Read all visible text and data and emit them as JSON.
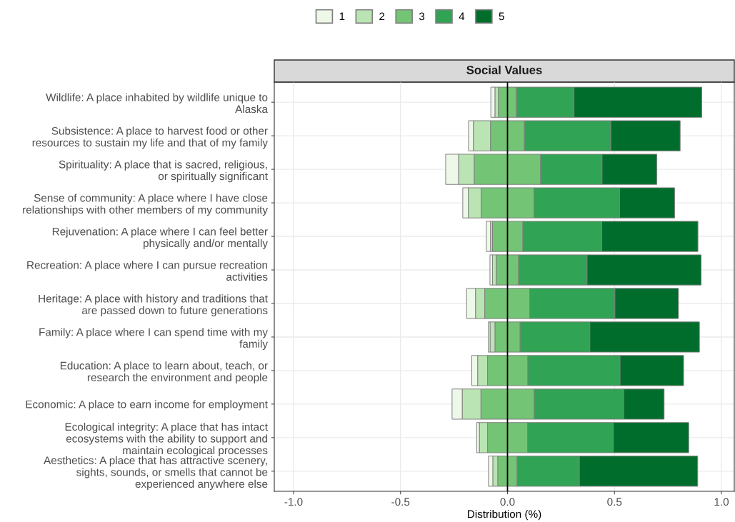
{
  "chart_data": {
    "type": "bar",
    "orientation": "horizontal",
    "title": "Social Values",
    "xlabel": "Distribution (%)",
    "categories": [
      "Wildlife: A place inhabited by wildlife unique to\nAlaska",
      "Subsistence: A place to harvest food or other\nresources to sustain my life and that of my family",
      "Spirituality: A place that is sacred, religious,\nor spiritually significant",
      "Sense of community: A place where I have close\nrelationships with other members of my community",
      "Rejuvenation: A place where I can feel better\nphysically and/or mentally",
      "Recreation: A place where I can pursue recreation\nactivities",
      "Heritage: A place with history and traditions that\nare passed down to future generations",
      "Family: A place where I can spend time with my\nfamily",
      "Education: A place to learn about, teach, or\nresearch the environment and people",
      "Economic: A place to earn income for employment",
      "Ecological integrity: A place that has intact\necosystems with the ability to support and\nmaintain ecological processes",
      "Aesthetics: A place that has attractive scenery,\nsights, sounds, or smells that cannot be\nexperienced anywhere else"
    ],
    "series": [
      {
        "name": "1",
        "color": "#edf8e9",
        "base": [
          -0.078,
          -0.182,
          -0.289,
          -0.209,
          -0.099,
          -0.082,
          -0.191,
          -0.09,
          -0.167,
          -0.259,
          -0.144,
          -0.089
        ],
        "values": [
          0.02,
          0.023,
          0.061,
          0.026,
          0.02,
          0.012,
          0.042,
          0.009,
          0.028,
          0.048,
          0.013,
          0.021
        ]
      },
      {
        "name": "2",
        "color": "#bae4b3",
        "base": [
          -0.058,
          -0.159,
          -0.228,
          -0.183,
          -0.079,
          -0.07,
          -0.149,
          -0.081,
          -0.139,
          -0.211,
          -0.131,
          -0.068
        ],
        "values": [
          0.016,
          0.08,
          0.073,
          0.06,
          0.009,
          0.018,
          0.043,
          0.023,
          0.046,
          0.087,
          0.038,
          0.023
        ]
      },
      {
        "name": "3",
        "color": "#74c476",
        "base": [
          -0.042,
          -0.079,
          -0.155,
          -0.123,
          -0.07,
          -0.052,
          -0.106,
          -0.058,
          -0.093,
          -0.124,
          -0.093,
          -0.045
        ],
        "values": [
          0.084,
          0.158,
          0.31,
          0.247,
          0.142,
          0.104,
          0.21,
          0.117,
          0.188,
          0.249,
          0.187,
          0.09
        ]
      },
      {
        "name": "4",
        "color": "#31a354",
        "base": [
          0.042,
          0.079,
          0.155,
          0.124,
          0.072,
          0.052,
          0.104,
          0.059,
          0.095,
          0.125,
          0.094,
          0.045
        ],
        "values": [
          0.269,
          0.404,
          0.287,
          0.4,
          0.369,
          0.32,
          0.398,
          0.326,
          0.431,
          0.418,
          0.401,
          0.291
        ]
      },
      {
        "name": "5",
        "color": "#006d2c",
        "base": [
          0.311,
          0.483,
          0.442,
          0.524,
          0.441,
          0.372,
          0.502,
          0.385,
          0.526,
          0.543,
          0.495,
          0.336
        ],
        "values": [
          0.597,
          0.324,
          0.256,
          0.257,
          0.449,
          0.533,
          0.297,
          0.512,
          0.297,
          0.189,
          0.352,
          0.553
        ]
      }
    ],
    "xlim": [
      -1.09,
      1.06
    ],
    "xticks": [
      {
        "value": -1,
        "label": "-1.0"
      },
      {
        "value": -0.5,
        "label": "-0.5"
      },
      {
        "value": 0,
        "label": "0.0"
      },
      {
        "value": 0.5,
        "label": "0.5"
      },
      {
        "value": 1,
        "label": "1.0"
      }
    ],
    "ref_lines": [
      {
        "axis": "x",
        "value": 0,
        "color": "#000000"
      }
    ],
    "grid": true,
    "legend": "top"
  }
}
